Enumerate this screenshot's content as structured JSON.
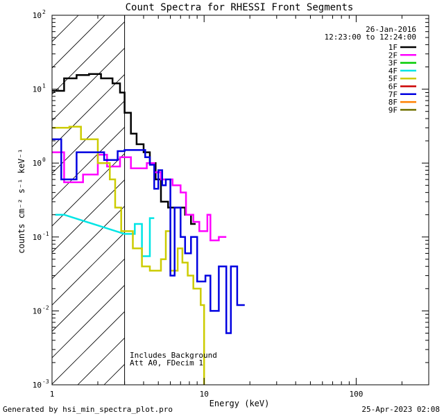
{
  "chart_data": {
    "type": "line",
    "title": "Count Spectra for RHESSI Front Segments",
    "xlabel": "Energy (keV)",
    "ylabel": "counts cm⁻² s⁻¹ keV⁻¹",
    "x_scale": "log",
    "y_scale": "log",
    "xlim": [
      1,
      300
    ],
    "ylim": [
      0.001,
      100
    ],
    "x_tick_labels": [
      {
        "value": 1,
        "label": "1"
      },
      {
        "value": 10,
        "label": "10"
      },
      {
        "value": 100,
        "label": "100"
      }
    ],
    "y_tick_labels": [
      {
        "value": 0.001,
        "base": "10",
        "exp": "-3"
      },
      {
        "value": 0.01,
        "base": "10",
        "exp": "-2"
      },
      {
        "value": 0.1,
        "base": "10",
        "exp": "-1"
      },
      {
        "value": 1,
        "base": "10",
        "exp": "0"
      },
      {
        "value": 10,
        "base": "10",
        "exp": "1"
      },
      {
        "value": 100,
        "base": "10",
        "exp": "2"
      }
    ],
    "shaded_region": [
      1,
      3
    ],
    "grid": false,
    "legend_position": "top-right",
    "legend": [
      {
        "name": "1F",
        "color": "#000000"
      },
      {
        "name": "2F",
        "color": "#ff00ff"
      },
      {
        "name": "3F",
        "color": "#00cc00"
      },
      {
        "name": "4F",
        "color": "#00e5e5"
      },
      {
        "name": "5F",
        "color": "#cccc00"
      },
      {
        "name": "6F",
        "color": "#cc0000"
      },
      {
        "name": "7F",
        "color": "#0000e0"
      },
      {
        "name": "8F",
        "color": "#ff8000"
      },
      {
        "name": "9F",
        "color": "#707000"
      }
    ],
    "series": [
      {
        "name": "1F",
        "color": "#000000",
        "points": [
          [
            1,
            9.5
          ],
          [
            1.2,
            9.5
          ],
          [
            1.2,
            14
          ],
          [
            1.45,
            14
          ],
          [
            1.45,
            15.5
          ],
          [
            1.75,
            15.5
          ],
          [
            1.75,
            16
          ],
          [
            2.1,
            16
          ],
          [
            2.1,
            14
          ],
          [
            2.5,
            14
          ],
          [
            2.5,
            12
          ],
          [
            2.8,
            12
          ],
          [
            2.8,
            9
          ],
          [
            3.0,
            9
          ],
          [
            3.0,
            4.8
          ],
          [
            3.3,
            4.8
          ],
          [
            3.3,
            2.5
          ],
          [
            3.6,
            2.5
          ],
          [
            3.6,
            1.8
          ],
          [
            4.0,
            1.8
          ],
          [
            4.0,
            1.4
          ],
          [
            4.4,
            1.4
          ],
          [
            4.4,
            1.0
          ],
          [
            4.8,
            1.0
          ],
          [
            4.8,
            0.6
          ],
          [
            5.2,
            0.6
          ],
          [
            5.2,
            0.3
          ],
          [
            5.8,
            0.3
          ],
          [
            5.8,
            0.25
          ],
          [
            7.5,
            0.25
          ],
          [
            7.5,
            0.2
          ],
          [
            8.2,
            0.2
          ],
          [
            8.2,
            0.15
          ],
          [
            8.8,
            0.15
          ]
        ]
      },
      {
        "name": "2F",
        "color": "#ff00ff",
        "points": [
          [
            1,
            1.4
          ],
          [
            1.2,
            1.4
          ],
          [
            1.2,
            0.55
          ],
          [
            1.6,
            0.55
          ],
          [
            1.6,
            0.7
          ],
          [
            2.0,
            0.7
          ],
          [
            2.0,
            1.3
          ],
          [
            2.3,
            1.3
          ],
          [
            2.3,
            0.9
          ],
          [
            2.8,
            0.9
          ],
          [
            2.8,
            1.2
          ],
          [
            3.3,
            1.2
          ],
          [
            3.3,
            0.85
          ],
          [
            4.2,
            0.85
          ],
          [
            4.2,
            1.0
          ],
          [
            4.7,
            1.0
          ],
          [
            4.7,
            0.75
          ],
          [
            5.2,
            0.75
          ],
          [
            5.2,
            0.6
          ],
          [
            6.2,
            0.6
          ],
          [
            6.2,
            0.5
          ],
          [
            7.0,
            0.5
          ],
          [
            7.0,
            0.4
          ],
          [
            7.6,
            0.4
          ],
          [
            7.6,
            0.2
          ],
          [
            8.5,
            0.2
          ],
          [
            8.5,
            0.16
          ],
          [
            9.3,
            0.16
          ],
          [
            9.3,
            0.12
          ],
          [
            10.5,
            0.12
          ],
          [
            10.5,
            0.2
          ],
          [
            11.0,
            0.2
          ],
          [
            11.0,
            0.09
          ],
          [
            12.5,
            0.09
          ],
          [
            12.5,
            0.1
          ],
          [
            14.0,
            0.1
          ]
        ]
      },
      {
        "name": "4F",
        "color": "#00e5e5",
        "points": [
          [
            1.05,
            0.2
          ],
          [
            1.2,
            0.2
          ],
          [
            3.0,
            0.11
          ],
          [
            3.5,
            0.11
          ],
          [
            3.5,
            0.15
          ],
          [
            3.9,
            0.15
          ],
          [
            3.9,
            0.055
          ],
          [
            4.4,
            0.055
          ],
          [
            4.4,
            0.18
          ],
          [
            4.7,
            0.18
          ]
        ]
      },
      {
        "name": "5F",
        "color": "#cccc00",
        "points": [
          [
            1,
            3.0
          ],
          [
            1.3,
            3.0
          ],
          [
            1.3,
            3.1
          ],
          [
            1.55,
            3.1
          ],
          [
            1.55,
            2.1
          ],
          [
            2.0,
            2.1
          ],
          [
            2.0,
            1.0
          ],
          [
            2.4,
            1.0
          ],
          [
            2.4,
            0.6
          ],
          [
            2.6,
            0.6
          ],
          [
            2.6,
            0.25
          ],
          [
            2.85,
            0.25
          ],
          [
            2.85,
            0.12
          ],
          [
            3.0,
            0.12
          ],
          [
            3.0,
            0.12
          ],
          [
            3.4,
            0.12
          ],
          [
            3.4,
            0.07
          ],
          [
            3.9,
            0.07
          ],
          [
            3.9,
            0.04
          ],
          [
            4.4,
            0.04
          ],
          [
            4.4,
            0.035
          ],
          [
            5.2,
            0.035
          ],
          [
            5.2,
            0.05
          ],
          [
            5.6,
            0.05
          ],
          [
            5.6,
            0.12
          ],
          [
            6.0,
            0.12
          ],
          [
            6.0,
            0.035
          ],
          [
            6.7,
            0.035
          ],
          [
            6.7,
            0.07
          ],
          [
            7.2,
            0.07
          ],
          [
            7.2,
            0.045
          ],
          [
            7.8,
            0.045
          ],
          [
            7.8,
            0.03
          ],
          [
            8.5,
            0.03
          ],
          [
            8.5,
            0.02
          ],
          [
            9.5,
            0.02
          ],
          [
            9.5,
            0.012
          ],
          [
            10.0,
            0.012
          ],
          [
            10.0,
            0.001
          ]
        ]
      },
      {
        "name": "7F",
        "color": "#0000e0",
        "points": [
          [
            1,
            2.1
          ],
          [
            1.15,
            2.1
          ],
          [
            1.15,
            0.6
          ],
          [
            1.45,
            0.6
          ],
          [
            1.45,
            1.4
          ],
          [
            2.2,
            1.4
          ],
          [
            2.2,
            1.1
          ],
          [
            2.7,
            1.1
          ],
          [
            2.7,
            1.45
          ],
          [
            3.0,
            1.45
          ],
          [
            3.0,
            1.5
          ],
          [
            4.1,
            1.5
          ],
          [
            4.1,
            1.2
          ],
          [
            4.4,
            1.2
          ],
          [
            4.4,
            0.95
          ],
          [
            4.7,
            0.95
          ],
          [
            4.7,
            0.45
          ],
          [
            5.0,
            0.45
          ],
          [
            5.0,
            0.8
          ],
          [
            5.3,
            0.8
          ],
          [
            5.3,
            0.5
          ],
          [
            5.6,
            0.5
          ],
          [
            5.6,
            0.6
          ],
          [
            6.0,
            0.6
          ],
          [
            6.0,
            0.03
          ],
          [
            6.4,
            0.03
          ],
          [
            6.4,
            0.25
          ],
          [
            7.0,
            0.25
          ],
          [
            7.0,
            0.1
          ],
          [
            7.5,
            0.1
          ],
          [
            7.5,
            0.06
          ],
          [
            8.2,
            0.06
          ],
          [
            8.2,
            0.1
          ],
          [
            9.0,
            0.1
          ],
          [
            9.0,
            0.025
          ],
          [
            10.2,
            0.025
          ],
          [
            10.2,
            0.03
          ],
          [
            11.0,
            0.03
          ],
          [
            11.0,
            0.01
          ],
          [
            12.5,
            0.01
          ],
          [
            12.5,
            0.04
          ],
          [
            14.0,
            0.04
          ],
          [
            14.0,
            0.005
          ],
          [
            15.0,
            0.005
          ],
          [
            15.0,
            0.04
          ],
          [
            16.5,
            0.04
          ],
          [
            16.5,
            0.012
          ],
          [
            18.5,
            0.012
          ]
        ]
      }
    ]
  },
  "info": {
    "date": "26-Jan-2016",
    "time_range": "12:23:00 to 12:24:00",
    "background_note": "Includes Background",
    "attenuator_note": "Att A0, FDecim 1"
  },
  "footer": {
    "generated_by": "Generated by hsi_min_spectra_plot.pro",
    "timestamp": "25-Apr-2023 02:08"
  }
}
